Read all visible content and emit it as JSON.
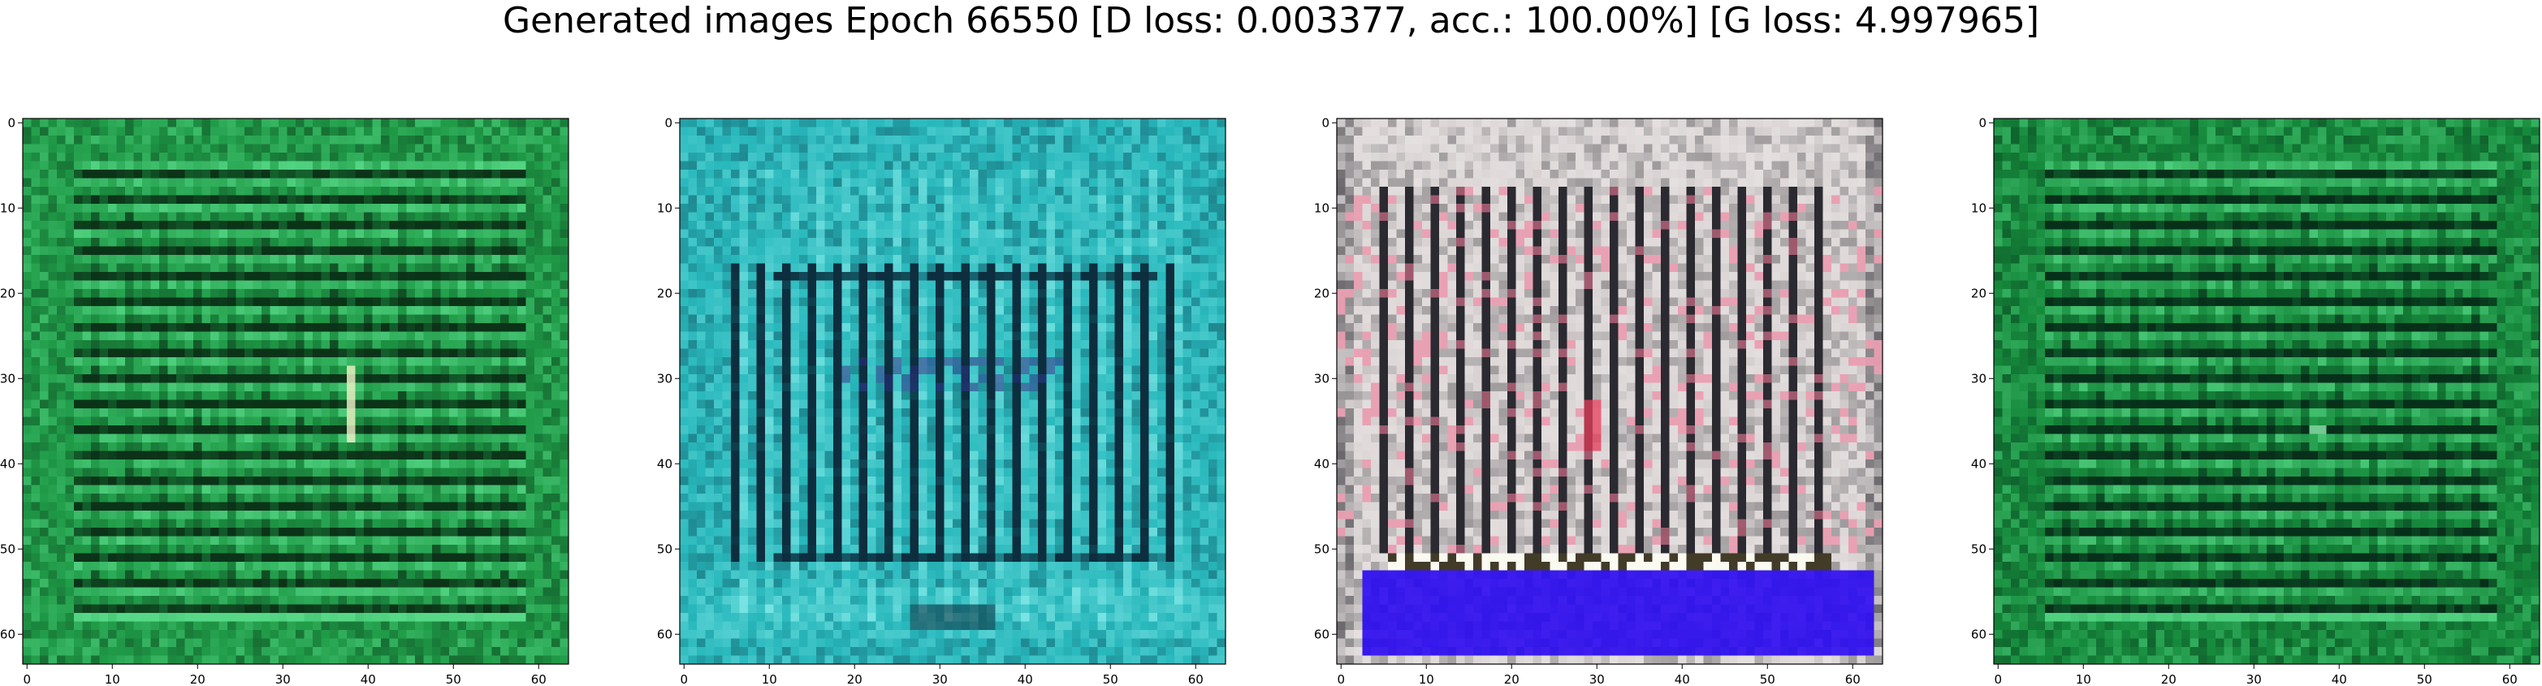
{
  "figure": {
    "title": "Generated images Epoch 66550 [D loss: 0.003377, acc.: 100.00%] [G loss: 4.997965]"
  },
  "axes": {
    "x_ticks": [
      "0",
      "10",
      "20",
      "30",
      "40",
      "50",
      "60"
    ],
    "y_ticks": [
      "0",
      "10",
      "20",
      "30",
      "40",
      "50",
      "60"
    ],
    "xlim": [
      -0.5,
      63.5
    ],
    "ylim": [
      63.5,
      -0.5
    ]
  },
  "images": [
    {
      "name": "generated-image-1",
      "description": "green textured grid",
      "colors": {
        "base": "#1f9a47",
        "light": "#56d887",
        "dark": "#0b3318",
        "accent": "#f2f2c8"
      }
    },
    {
      "name": "generated-image-2",
      "description": "cyan textured grid with dark vertical bars",
      "colors": {
        "base": "#28b8bc",
        "light": "#7fe7e6",
        "dark": "#0d2e3e",
        "accent": "#2a2d80"
      }
    },
    {
      "name": "generated-image-3",
      "description": "light grey grid with blue band at bottom",
      "colors": {
        "base": "#dcd6d6",
        "light": "#f7f3f3",
        "dark": "#2a2a30",
        "accent": "#3f1ff0"
      }
    },
    {
      "name": "generated-image-4",
      "description": "green textured grid",
      "colors": {
        "base": "#168a3c",
        "light": "#4fd07f",
        "dark": "#07301a",
        "accent": "#8ef0b0"
      }
    }
  ]
}
